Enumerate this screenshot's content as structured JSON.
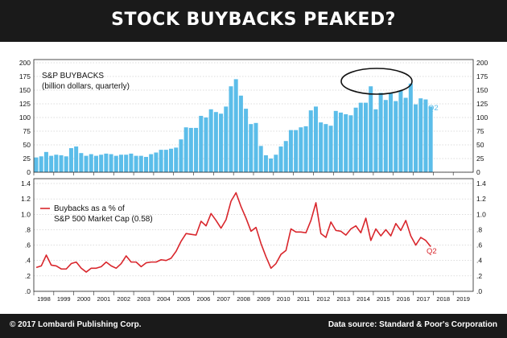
{
  "title": "STOCK BUYBACKS PEAKED?",
  "footer": {
    "copyright": "© 2017 Lombardi Publishing Corp.",
    "source": "Data source: Standard & Poor's Corporation"
  },
  "colors": {
    "bar": "#5bbde9",
    "line": "#d9262c",
    "q2_bar_label": "#5bbde9",
    "q2_line_label": "#d9262c",
    "background": "#1a1a1a"
  },
  "chart_data": [
    {
      "type": "bar",
      "label_line1": "S&P BUYBACKS",
      "label_line2": "(billion dollars, quarterly)",
      "end_label": "Q2",
      "ylim": [
        0,
        200
      ],
      "yticks": [
        "0",
        "25",
        "50",
        "75",
        "100",
        "125",
        "150",
        "175",
        "200"
      ],
      "x_start_year": 1998,
      "values": [
        27,
        29,
        37,
        30,
        32,
        31,
        29,
        44,
        47,
        35,
        30,
        33,
        30,
        32,
        34,
        33,
        30,
        32,
        32,
        34,
        30,
        30,
        28,
        33,
        36,
        41,
        41,
        43,
        45,
        60,
        82,
        81,
        81,
        103,
        100,
        115,
        110,
        107,
        120,
        157,
        170,
        140,
        116,
        88,
        90,
        48,
        31,
        25,
        32,
        47,
        57,
        77,
        77,
        82,
        84,
        113,
        120,
        91,
        88,
        85,
        112,
        109,
        106,
        104,
        118,
        127,
        127,
        157,
        115,
        145,
        132,
        144,
        130,
        149,
        136,
        162,
        124,
        135,
        133,
        120
      ],
      "annotation": "ellipse-around-2014-2015-peak"
    },
    {
      "type": "line",
      "label_line1": "Buybacks as a % of",
      "label_line2": "S&P 500 Market Cap (0.58)",
      "end_label": "Q2",
      "ylim": [
        0,
        1.4
      ],
      "yticks": [
        ".0",
        ".2",
        ".4",
        ".6",
        ".8",
        "1.0",
        "1.2",
        "1.4"
      ],
      "x_start_year": 1998,
      "values": [
        0.31,
        0.33,
        0.47,
        0.34,
        0.33,
        0.29,
        0.29,
        0.36,
        0.38,
        0.3,
        0.25,
        0.3,
        0.3,
        0.32,
        0.38,
        0.33,
        0.3,
        0.36,
        0.46,
        0.38,
        0.38,
        0.32,
        0.37,
        0.38,
        0.38,
        0.41,
        0.4,
        0.43,
        0.52,
        0.65,
        0.75,
        0.74,
        0.73,
        0.91,
        0.85,
        1.01,
        0.92,
        0.82,
        0.93,
        1.17,
        1.28,
        1.1,
        0.95,
        0.78,
        0.83,
        0.62,
        0.45,
        0.3,
        0.36,
        0.48,
        0.53,
        0.81,
        0.77,
        0.77,
        0.76,
        0.92,
        1.15,
        0.75,
        0.7,
        0.9,
        0.79,
        0.78,
        0.73,
        0.81,
        0.85,
        0.76,
        0.95,
        0.66,
        0.81,
        0.72,
        0.8,
        0.72,
        0.88,
        0.79,
        0.92,
        0.72,
        0.6,
        0.7,
        0.66,
        0.58
      ]
    }
  ],
  "x_axis": {
    "years": [
      "1998",
      "1999",
      "2000",
      "2001",
      "2002",
      "2003",
      "2004",
      "2005",
      "2006",
      "2007",
      "2008",
      "2009",
      "2010",
      "2011",
      "2012",
      "2013",
      "2014",
      "2015",
      "2016",
      "2017",
      "2018",
      "2019"
    ]
  }
}
